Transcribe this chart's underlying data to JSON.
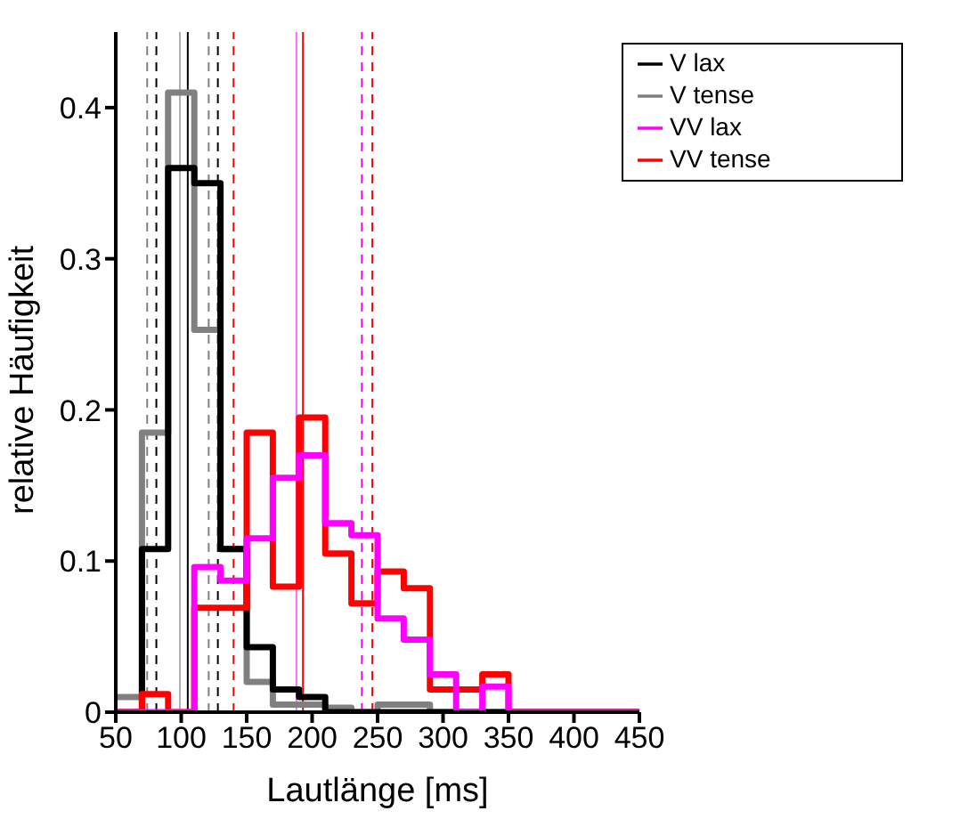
{
  "chart_data": {
    "type": "histogram",
    "xlabel": "Lautlänge [ms]",
    "ylabel": "relative Häufigkeit",
    "bins": [
      50,
      70,
      90,
      110,
      130,
      150,
      170,
      190,
      210,
      230,
      250,
      270,
      290,
      310,
      330,
      350,
      370,
      390,
      410,
      430,
      450
    ],
    "series": [
      {
        "name": "V tense",
        "color": "#808080",
        "values": [
          0.01,
          0.185,
          0.41,
          0.253,
          0.108,
          0.02,
          0.005,
          0.005,
          0.003,
          0,
          0.005,
          0.005,
          0,
          0,
          0,
          0,
          0,
          0,
          0,
          0
        ]
      },
      {
        "name": "V lax",
        "color": "#000000",
        "values": [
          0,
          0.108,
          0.36,
          0.35,
          0.108,
          0.043,
          0.015,
          0.01,
          0,
          0,
          0,
          0,
          0,
          0,
          0,
          0,
          0,
          0,
          0,
          0
        ]
      },
      {
        "name": "VV tense",
        "color": "#ff0000",
        "values": [
          0,
          0.012,
          0,
          0.069,
          0.069,
          0.185,
          0.083,
          0.195,
          0.105,
          0.072,
          0.093,
          0.082,
          0.015,
          0.015,
          0.025,
          0,
          0,
          0,
          0,
          0
        ]
      },
      {
        "name": "VV lax",
        "color": "#ff00ff",
        "values": [
          0,
          0,
          0,
          0.096,
          0.087,
          0.115,
          0.155,
          0.17,
          0.125,
          0.117,
          0.062,
          0.048,
          0.025,
          0,
          0.017,
          0,
          0,
          0,
          0,
          0
        ]
      }
    ],
    "xlim": [
      50,
      450
    ],
    "xticks": [
      50,
      100,
      150,
      200,
      250,
      300,
      350,
      400,
      450
    ],
    "ylim": [
      0,
      0.45
    ],
    "yticks": [
      0,
      0.1,
      0.2,
      0.3,
      0.4
    ],
    "ref_lines": [
      {
        "axis": "x",
        "value": 74,
        "color": "#808080",
        "line_style": "dashed"
      },
      {
        "axis": "x",
        "value": 81,
        "color": "#000000",
        "line_style": "dashed"
      },
      {
        "axis": "x",
        "value": 99,
        "color": "#b0b0b0",
        "line_style": "solid"
      },
      {
        "axis": "x",
        "value": 105,
        "color": "#000000",
        "line_style": "solid"
      },
      {
        "axis": "x",
        "value": 121,
        "color": "#808080",
        "line_style": "dashed"
      },
      {
        "axis": "x",
        "value": 128,
        "color": "#000000",
        "line_style": "dashed"
      },
      {
        "axis": "x",
        "value": 140,
        "color": "#ff0000",
        "line_style": "dashed"
      },
      {
        "axis": "x",
        "value": 188,
        "color": "#ff66ff",
        "line_style": "solid"
      },
      {
        "axis": "x",
        "value": 193,
        "color": "#ff0000",
        "line_style": "solid"
      },
      {
        "axis": "x",
        "value": 238,
        "color": "#ff00ff",
        "line_style": "dashed"
      },
      {
        "axis": "x",
        "value": 246,
        "color": "#ff0000",
        "line_style": "dashed"
      }
    ],
    "legend": "top right",
    "grid": false,
    "line_style": "solid",
    "marker": "none"
  }
}
